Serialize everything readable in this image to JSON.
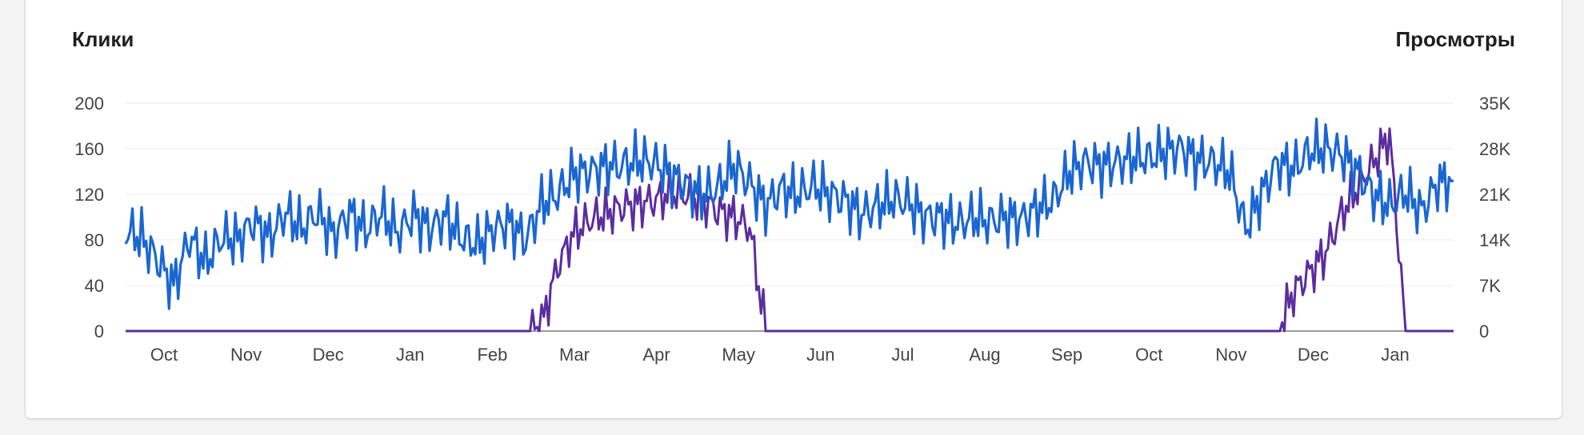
{
  "chart_data": {
    "type": "line",
    "left_axis_title": "Клики",
    "right_axis_title": "Просмотры",
    "left_ticks": [
      "200",
      "160",
      "120",
      "80",
      "40",
      "0"
    ],
    "right_ticks": [
      "35K",
      "28K",
      "21K",
      "14K",
      "7K",
      "0"
    ],
    "x_ticks": [
      "Oct",
      "Nov",
      "Dec",
      "Jan",
      "Feb",
      "Mar",
      "Apr",
      "May",
      "Jun",
      "Jul",
      "Aug",
      "Sep",
      "Oct",
      "Nov",
      "Dec",
      "Jan"
    ],
    "ylim_left": [
      0,
      200
    ],
    "ylim_right": [
      0,
      35000
    ],
    "grid": true,
    "colors": {
      "clicks": "#1a66d2",
      "views": "#5b2d9e"
    },
    "series_clicks_weekly": [
      88,
      82,
      62,
      40,
      82,
      60,
      82,
      80,
      96,
      82,
      104,
      90,
      104,
      84,
      104,
      88,
      104,
      86,
      102,
      90,
      100,
      82,
      76,
      90,
      95,
      80,
      112,
      120,
      138,
      140,
      145,
      145,
      150,
      148,
      138,
      128,
      120,
      125,
      145,
      130,
      110,
      125,
      120,
      128,
      120,
      115,
      102,
      110,
      116,
      112,
      100,
      100,
      94,
      100,
      96,
      100,
      98,
      108,
      115,
      140,
      148,
      145,
      148,
      152,
      152,
      158,
      160,
      150,
      148,
      140,
      90,
      120,
      148,
      142,
      158,
      160,
      155,
      140,
      120,
      110,
      122,
      105,
      130,
      132
    ],
    "series_views_weekly": [
      0,
      0,
      0,
      0,
      0,
      0,
      0,
      0,
      0,
      0,
      0,
      0,
      0,
      0,
      0,
      0,
      0,
      0,
      0,
      0,
      0,
      0,
      0,
      0,
      0,
      0,
      1000,
      10000,
      15000,
      17000,
      18000,
      19000,
      19500,
      20000,
      21000,
      21000,
      20000,
      18500,
      17500,
      16000,
      0,
      0,
      0,
      0,
      0,
      0,
      0,
      0,
      0,
      0,
      0,
      0,
      0,
      0,
      0,
      0,
      0,
      0,
      0,
      0,
      0,
      0,
      0,
      0,
      0,
      0,
      0,
      0,
      0,
      0,
      0,
      0,
      0,
      6000,
      9000,
      12000,
      18000,
      22000,
      26000,
      30000,
      0,
      0,
      0,
      0
    ]
  }
}
